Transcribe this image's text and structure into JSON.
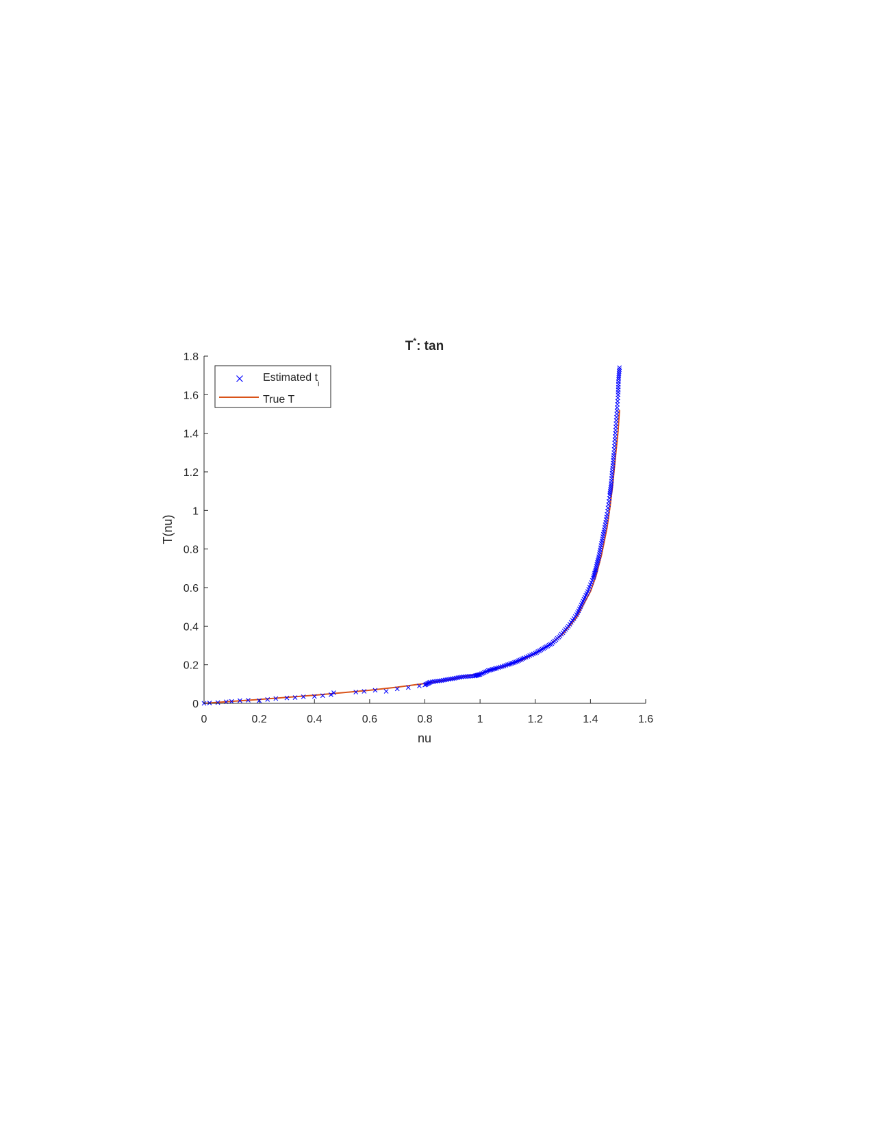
{
  "chart_data": {
    "type": "line",
    "title": "T",
    "title_superscript": "*",
    "title_suffix": ": tan",
    "xlabel": "nu",
    "ylabel": "T(nu)",
    "xlim": [
      0,
      1.6
    ],
    "ylim": [
      0,
      1.8
    ],
    "xticks": [
      "0",
      "0.2",
      "0.4",
      "0.6",
      "0.8",
      "1",
      "1.2",
      "1.4",
      "1.6"
    ],
    "yticks": [
      "0",
      "0.2",
      "0.4",
      "0.6",
      "0.8",
      "1",
      "1.2",
      "1.4",
      "1.6",
      "1.8"
    ],
    "grid": false,
    "legend": {
      "placement": "top-left",
      "entries": [
        {
          "label": "Estimated t",
          "subscript": "i",
          "marker": "x",
          "color": "#0000ff"
        },
        {
          "label": "True T",
          "marker": "line",
          "color": "#d95319"
        }
      ]
    },
    "series": [
      {
        "name": "Estimated t_i",
        "kind": "scatter",
        "color": "#0000ff",
        "x": [
          0.0,
          0.02,
          0.05,
          0.08,
          0.1,
          0.13,
          0.16,
          0.2,
          0.23,
          0.26,
          0.3,
          0.33,
          0.36,
          0.4,
          0.43,
          0.46,
          0.47,
          0.55,
          0.58,
          0.62,
          0.66,
          0.7,
          0.74,
          0.78,
          0.8,
          0.82,
          0.86,
          0.9,
          0.94,
          0.98,
          1.0,
          1.03,
          1.06,
          1.1,
          1.13,
          1.16,
          1.2,
          1.23,
          1.26,
          1.29,
          1.32,
          1.35,
          1.37,
          1.39,
          1.41,
          1.42,
          1.43,
          1.44,
          1.45,
          1.46,
          1.47,
          1.475,
          1.48,
          1.485,
          1.49,
          1.495,
          1.5,
          1.502,
          1.505
        ],
        "y": [
          0.0,
          0.002,
          0.004,
          0.008,
          0.01,
          0.014,
          0.016,
          0.014,
          0.02,
          0.025,
          0.028,
          0.03,
          0.034,
          0.036,
          0.04,
          0.045,
          0.055,
          0.058,
          0.062,
          0.068,
          0.062,
          0.075,
          0.082,
          0.09,
          0.095,
          0.11,
          0.118,
          0.128,
          0.138,
          0.142,
          0.15,
          0.17,
          0.182,
          0.2,
          0.215,
          0.235,
          0.26,
          0.285,
          0.31,
          0.35,
          0.4,
          0.46,
          0.52,
          0.58,
          0.65,
          0.7,
          0.76,
          0.83,
          0.9,
          0.98,
          1.08,
          1.14,
          1.22,
          1.3,
          1.4,
          1.5,
          1.6,
          1.68,
          1.74
        ]
      },
      {
        "name": "True T",
        "kind": "line",
        "color": "#d95319",
        "x": [
          0,
          0.1,
          0.2,
          0.3,
          0.4,
          0.5,
          0.6,
          0.7,
          0.8,
          0.9,
          1.0,
          1.05,
          1.1,
          1.15,
          1.2,
          1.25,
          1.3,
          1.35,
          1.4,
          1.42,
          1.44,
          1.46,
          1.47,
          1.48,
          1.49,
          1.5,
          1.505
        ],
        "y": [
          0,
          0.01,
          0.02,
          0.031,
          0.042,
          0.055,
          0.068,
          0.084,
          0.103,
          0.126,
          0.156,
          0.174,
          0.196,
          0.223,
          0.257,
          0.301,
          0.36,
          0.446,
          0.58,
          0.66,
          0.769,
          0.91,
          1.01,
          1.126,
          1.27,
          1.41,
          1.52
        ]
      }
    ]
  }
}
